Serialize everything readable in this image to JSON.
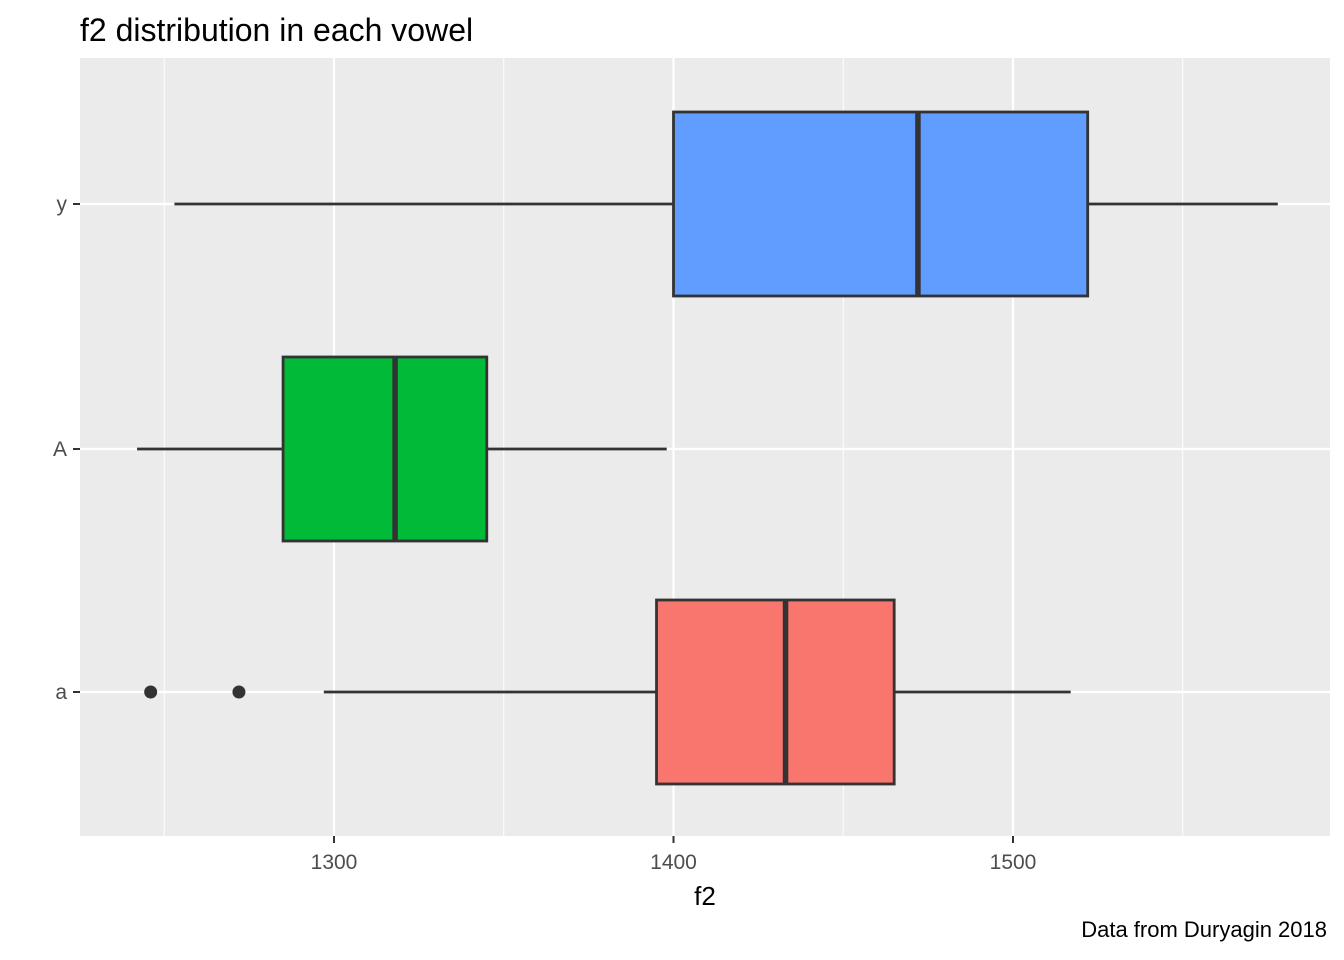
{
  "chart_data": {
    "type": "boxplot",
    "title": "f2 distribution in each vowel",
    "xlabel": "f2",
    "ylabel": "",
    "caption": "Data from Duryagin 2018",
    "xlim": [
      1225,
      1580
    ],
    "x_ticks": [
      1300,
      1400,
      1500
    ],
    "x_tick_labels": [
      "1300",
      "1400",
      "1500"
    ],
    "categories": [
      "a",
      "A",
      "y"
    ],
    "grid": true,
    "legend": "none",
    "boxes": [
      {
        "category": "a",
        "whisker_low": 1297,
        "q1": 1395,
        "median": 1433,
        "q3": 1465,
        "whisker_high": 1517,
        "outliers": [
          1246,
          1272
        ],
        "color": "#F8766D"
      },
      {
        "category": "A",
        "whisker_low": 1242,
        "q1": 1285,
        "median": 1318,
        "q3": 1345,
        "whisker_high": 1398,
        "outliers": [],
        "color": "#00BA38"
      },
      {
        "category": "y",
        "whisker_low": 1253,
        "q1": 1400,
        "median": 1472,
        "q3": 1522,
        "whisker_high": 1578,
        "outliers": [],
        "color": "#619CFF"
      }
    ]
  }
}
